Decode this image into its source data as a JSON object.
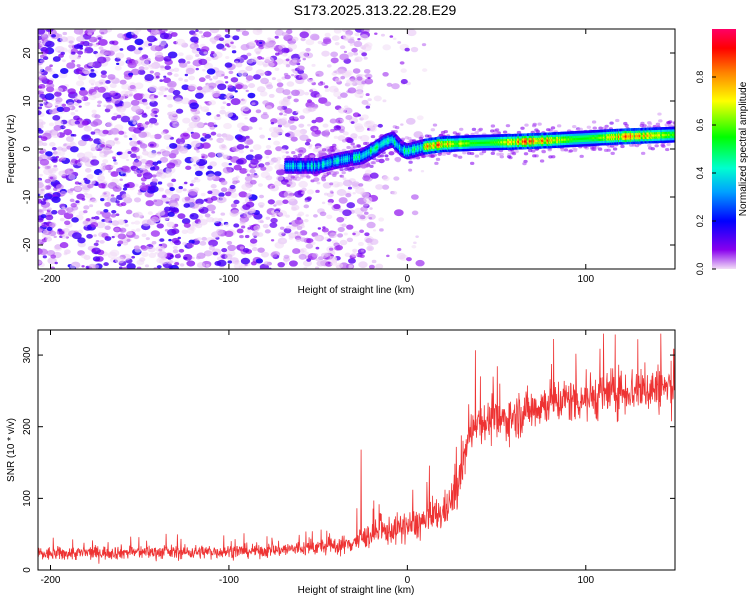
{
  "title": "S173.2025.313.22.28.E29",
  "chart_data": [
    {
      "type": "heatmap",
      "name": "spectrogram",
      "xlabel": "Height of straight line (km)",
      "ylabel": "Frequency (Hz)",
      "xlim": [
        -207,
        150
      ],
      "ylim": [
        -25,
        25
      ],
      "xticks": [
        -200,
        -100,
        0,
        100
      ],
      "yticks": [
        -20,
        -10,
        0,
        10,
        20
      ],
      "colorbar": {
        "label": "Normalized spectral amplitude",
        "range": [
          0.0,
          1.0
        ],
        "ticks": [
          0.0,
          0.2,
          0.4,
          0.6,
          0.8
        ],
        "tick_labels": [
          "0.0",
          "0.2",
          "0.4",
          "0.6",
          "0.8"
        ]
      },
      "signal_track": {
        "x": [
          -68,
          -60,
          -50,
          -40,
          -33,
          -25,
          -18,
          -12,
          -8,
          -3,
          0,
          5,
          10,
          20,
          40,
          60,
          80,
          100,
          120,
          150
        ],
        "y": [
          -3.5,
          -3.5,
          -3.5,
          -2.5,
          -2,
          -1.5,
          0,
          1.5,
          2,
          0,
          -0.5,
          0,
          0.5,
          1,
          1.3,
          1.5,
          1.8,
          2.2,
          2.6,
          3
        ]
      },
      "noise_region": {
        "x": [
          -207,
          -30
        ],
        "y": [
          -25,
          25
        ]
      }
    },
    {
      "type": "line",
      "name": "snr",
      "xlabel": "Height of straight line (km)",
      "ylabel": "SNR (10 * v/v)",
      "xlim": [
        -207,
        150
      ],
      "ylim": [
        0,
        335
      ],
      "xticks": [
        -200,
        -100,
        0,
        100
      ],
      "yticks": [
        0,
        100,
        200,
        300
      ],
      "series": [
        {
          "name": "SNR",
          "color": "#ee3333",
          "x": [
            -207,
            -180,
            -150,
            -120,
            -100,
            -80,
            -60,
            -45,
            -35,
            -27,
            -20,
            -10,
            0,
            10,
            20,
            28,
            33,
            38,
            50,
            60,
            80,
            100,
            120,
            150
          ],
          "mean": [
            22,
            24,
            25,
            25,
            26,
            27,
            30,
            33,
            35,
            42,
            50,
            55,
            60,
            68,
            80,
            110,
            170,
            210,
            205,
            215,
            235,
            240,
            250,
            255
          ],
          "spread": [
            10,
            10,
            10,
            10,
            10,
            10,
            11,
            12,
            14,
            16,
            18,
            20,
            22,
            25,
            25,
            28,
            30,
            30,
            30,
            32,
            32,
            34,
            34,
            35
          ],
          "spikes": [
            {
              "x": -26,
              "y": 168
            },
            {
              "x": 110,
              "y": 330
            },
            {
              "x": 142,
              "y": 330
            },
            {
              "x": 48,
              "y": 270
            }
          ]
        }
      ]
    }
  ]
}
